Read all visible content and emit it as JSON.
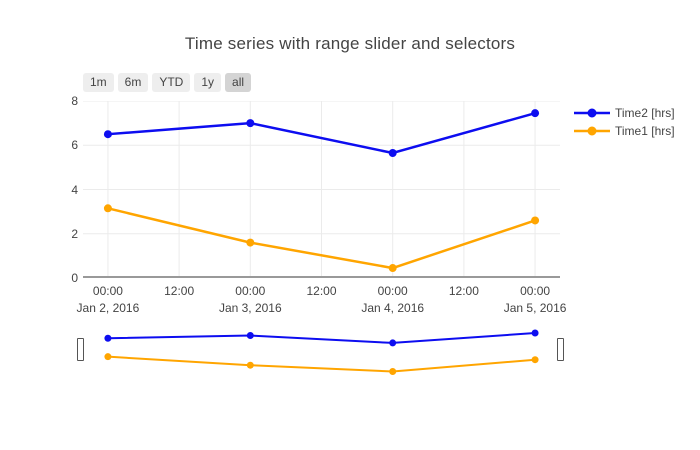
{
  "title": "Time series with range slider and selectors",
  "range_selector": {
    "buttons": [
      "1m",
      "6m",
      "YTD",
      "1y",
      "all"
    ],
    "active_index": 4,
    "button_bg": "#eeeeee",
    "active_bg": "#d4d4d4",
    "text_color": "#444444"
  },
  "legend": {
    "items": [
      {
        "label": "Time2 [hrs]",
        "color": "#0d0df0"
      },
      {
        "label": "Time1 [hrs]",
        "color": "#ffa500"
      }
    ]
  },
  "chart_data": {
    "type": "line",
    "title": "Time series with range slider and selectors",
    "x": {
      "range_hours": [
        -4.2,
        76.2
      ],
      "tick_hours": [
        0,
        12,
        24,
        36,
        48,
        60,
        72
      ],
      "tick_labels": [
        "00:00",
        "12:00",
        "00:00",
        "12:00",
        "00:00",
        "12:00",
        "00:00"
      ],
      "date_hours": [
        0,
        24,
        48,
        72
      ],
      "date_labels": [
        "Jan 2, 2016",
        "Jan 3, 2016",
        "Jan 4, 2016",
        "Jan 5, 2016"
      ]
    },
    "y": {
      "range": [
        0,
        8
      ],
      "ticks": [
        0,
        2,
        4,
        6,
        8
      ]
    },
    "series": [
      {
        "name": "Time2 [hrs]",
        "color": "#0d0df0",
        "x_hours": [
          0,
          24,
          48,
          72
        ],
        "values": [
          6.5,
          7.0,
          5.65,
          7.45
        ]
      },
      {
        "name": "Time1 [hrs]",
        "color": "#ffa500",
        "x_hours": [
          0,
          24,
          48,
          72
        ],
        "values": [
          3.15,
          1.6,
          0.45,
          2.6
        ]
      }
    ],
    "grid": true,
    "grid_color": "#ebebeb",
    "axis_line_color": "#999999",
    "tick_text_color": "#444444",
    "legend_position": "right",
    "rangeslider": {
      "enabled": true,
      "selected_range": "all"
    }
  }
}
